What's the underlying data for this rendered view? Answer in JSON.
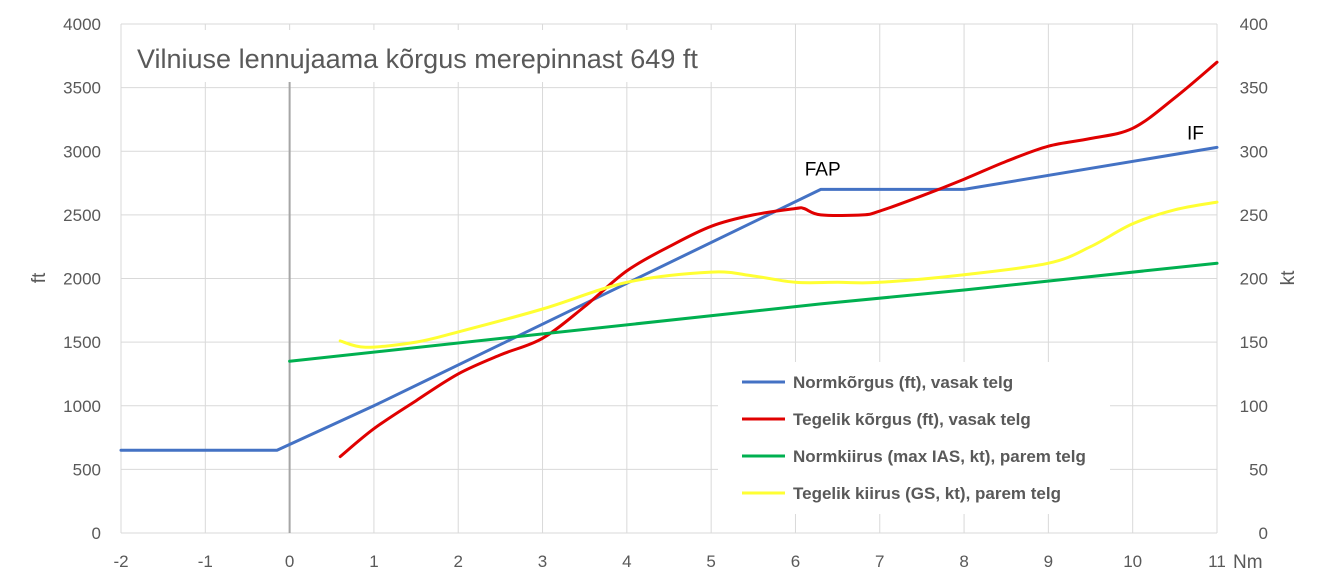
{
  "chart_data": {
    "type": "line",
    "title": "Vilniuse lennujaama kõrgus merepinnast 649 ft",
    "xlabel": "Nm",
    "ylabel": "ft",
    "y2label": "kt",
    "xlim": [
      -2,
      11
    ],
    "ylim": [
      0,
      4000
    ],
    "y2lim": [
      0,
      400
    ],
    "x_ticks": [
      "-2",
      "-1",
      "0",
      "1",
      "2",
      "3",
      "4",
      "5",
      "6",
      "7",
      "8",
      "9",
      "10",
      "11"
    ],
    "y_ticks": [
      "0",
      "500",
      "1000",
      "1500",
      "2000",
      "2500",
      "3000",
      "3500",
      "4000"
    ],
    "y2_ticks": [
      "0",
      "50",
      "100",
      "150",
      "200",
      "250",
      "300",
      "350",
      "400"
    ],
    "grid": true,
    "legend_position": "bottom-right",
    "series": [
      {
        "name": "Normkõrgus (ft), vasak telg",
        "axis": "left",
        "color": "#4472c4",
        "smooth": false,
        "points": [
          [
            -2,
            650
          ],
          [
            -0.15,
            650
          ],
          [
            1,
            1000
          ],
          [
            6.3,
            2700
          ],
          [
            8,
            2700
          ],
          [
            11,
            3030
          ]
        ]
      },
      {
        "name": "Tegelik kõrgus (ft), vasak telg",
        "axis": "left",
        "color": "#e00000",
        "smooth": true,
        "points": [
          [
            0.6,
            600
          ],
          [
            1,
            820
          ],
          [
            1.5,
            1040
          ],
          [
            2,
            1250
          ],
          [
            2.5,
            1400
          ],
          [
            3,
            1530
          ],
          [
            3.5,
            1780
          ],
          [
            4,
            2060
          ],
          [
            4.5,
            2250
          ],
          [
            5,
            2410
          ],
          [
            5.5,
            2500
          ],
          [
            6,
            2550
          ],
          [
            6.1,
            2550
          ],
          [
            6.3,
            2500
          ],
          [
            6.8,
            2500
          ],
          [
            7,
            2530
          ],
          [
            7.5,
            2650
          ],
          [
            8,
            2780
          ],
          [
            8.5,
            2920
          ],
          [
            9,
            3040
          ],
          [
            9.5,
            3100
          ],
          [
            10,
            3180
          ],
          [
            10.5,
            3420
          ],
          [
            11,
            3700
          ]
        ]
      },
      {
        "name": "Normkiirus (max IAS, kt), parem telg",
        "axis": "right",
        "color": "#00b050",
        "smooth": false,
        "points": [
          [
            0,
            135
          ],
          [
            6.3,
            180
          ],
          [
            8,
            191
          ],
          [
            11,
            212
          ]
        ]
      },
      {
        "name": "Tegelik kiirus (GS, kt), parem telg",
        "axis": "right",
        "color": "#ffff33",
        "smooth": true,
        "points": [
          [
            0.6,
            151
          ],
          [
            0.9,
            146
          ],
          [
            1.5,
            150
          ],
          [
            2,
            158
          ],
          [
            3,
            176
          ],
          [
            4,
            197
          ],
          [
            5,
            205
          ],
          [
            5.5,
            202
          ],
          [
            6,
            197
          ],
          [
            6.5,
            197
          ],
          [
            7,
            197
          ],
          [
            8,
            203
          ],
          [
            9,
            212
          ],
          [
            9.5,
            225
          ],
          [
            10,
            243
          ],
          [
            10.5,
            254
          ],
          [
            11,
            260
          ]
        ]
      }
    ],
    "annotations": [
      {
        "text": "FAP",
        "x": 6.3,
        "y": 2700,
        "axis": "left"
      },
      {
        "text": "IF",
        "x": 11,
        "y": 3030,
        "axis": "left"
      }
    ]
  }
}
